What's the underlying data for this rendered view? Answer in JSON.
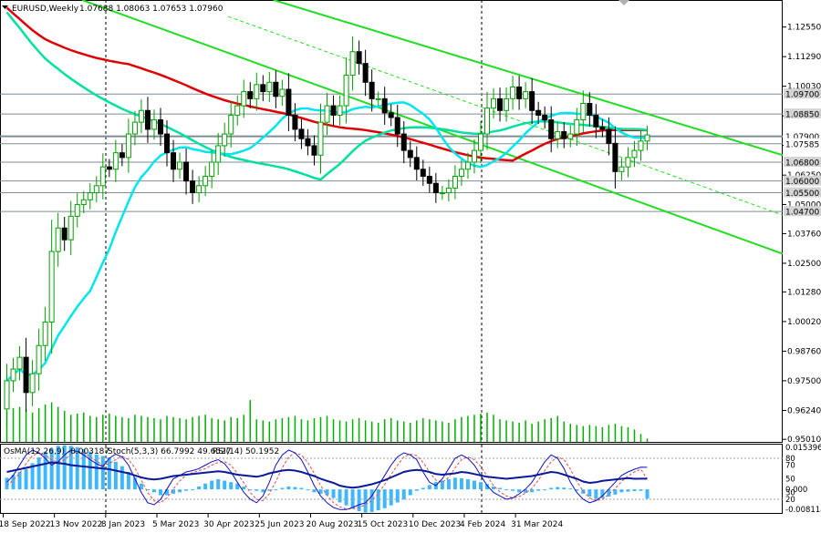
{
  "header": {
    "symbol": "EURUSD,Weekly",
    "ohlc": "1.07688 1.08063 1.07653 1.07960"
  },
  "indicator_header": {
    "osma": "OsMA(12,26,9) -0.003187",
    "stoch": "Stoch(5,3,3) 66.7992 49.6527",
    "rsi": "RSI(14) 50.1952"
  },
  "colors": {
    "bull": "#00a000",
    "bear": "#000000",
    "ma_fast": "#00e5ee",
    "ma_mid": "#00e0a0",
    "ma_slow": "#e00000",
    "channel": "#22dd22",
    "volume": "#00b000",
    "osma_hist": "#3fb7ff",
    "stoch_main": "#1010c0",
    "stoch_signal": "#e05050",
    "rsi": "#0000ff"
  },
  "chart_data": [
    {
      "type": "candlestick",
      "series_name": "EURUSD,Weekly",
      "ylim": [
        0.949,
        1.137
      ],
      "price_ticks": [
        "1.12550",
        "1.11290",
        "1.10030",
        "1.08770",
        "1.07510",
        "1.06250",
        "1.05000",
        "1.03760",
        "1.02500",
        "1.01280",
        "1.00020",
        "0.98760",
        "0.97500",
        "0.96240",
        "0.95010"
      ],
      "highlighted_levels": [
        {
          "label": "1.09700",
          "value": 1.097,
          "bg": "#d4d4d4",
          "fg": "#000000"
        },
        {
          "label": "1.08850",
          "value": 1.0885,
          "bg": "#d4d4d4",
          "fg": "#000000"
        },
        {
          "label": "1.07900",
          "value": 1.079,
          "bg": "#ffffff",
          "fg": "#000000"
        },
        {
          "label": "1.07585",
          "value": 1.07585,
          "bg": "#ffffff",
          "fg": "#000000"
        },
        {
          "label": "1.06800",
          "value": 1.068,
          "bg": "#d4d4d4",
          "fg": "#000000"
        },
        {
          "label": "1.06000",
          "value": 1.06,
          "bg": "#d4d4d4",
          "fg": "#000000"
        },
        {
          "label": "1.05500",
          "value": 1.055,
          "bg": "#d4d4d4",
          "fg": "#000000"
        },
        {
          "label": "1.04700",
          "value": 1.047,
          "bg": "#d4d4d4",
          "fg": "#000000"
        }
      ],
      "x_labels": [
        "18 Sep 2022",
        "13 Nov 2022",
        "8 Jan 2023",
        "5 Mar 2023",
        "30 Apr 2023",
        "25 Jun 2023",
        "20 Aug 2023",
        "15 Oct 2023",
        "10 Dec 2023",
        "4 Feb 2024",
        "31 Mar 2024"
      ],
      "weeks_per_label": 8,
      "close": [
        0.975,
        0.98,
        0.985,
        0.97,
        0.978,
        0.99,
        1.0,
        1.03,
        1.04,
        1.035,
        1.045,
        1.05,
        1.052,
        1.055,
        1.058,
        1.066,
        1.065,
        1.072,
        1.07,
        1.08,
        1.085,
        1.09,
        1.082,
        1.086,
        1.08,
        1.072,
        1.065,
        1.068,
        1.06,
        1.055,
        1.058,
        1.062,
        1.068,
        1.075,
        1.08,
        1.088,
        1.092,
        1.098,
        1.095,
        1.101,
        1.098,
        1.102,
        1.096,
        1.099,
        1.088,
        1.082,
        1.078,
        1.075,
        1.071,
        1.085,
        1.092,
        1.088,
        1.092,
        1.105,
        1.115,
        1.11,
        1.102,
        1.095,
        1.095,
        1.089,
        1.087,
        1.08,
        1.073,
        1.07,
        1.065,
        1.062,
        1.059,
        1.055,
        1.055,
        1.057,
        1.062,
        1.065,
        1.068,
        1.073,
        1.08,
        1.091,
        1.095,
        1.09,
        1.095,
        1.1,
        1.095,
        1.098,
        1.09,
        1.088,
        1.086,
        1.078,
        1.081,
        1.078,
        1.08,
        1.086,
        1.093,
        1.088,
        1.083,
        1.082,
        1.076,
        1.064,
        1.066,
        1.07,
        1.073,
        1.077,
        1.0796
      ],
      "volume_levels": [
        0.55,
        0.6,
        0.62,
        0.58,
        0.52,
        0.6,
        0.66,
        0.7,
        0.62,
        0.55,
        0.48,
        0.5,
        0.52,
        0.46,
        0.44,
        0.48,
        0.5,
        0.46,
        0.44,
        0.42,
        0.48,
        0.46,
        0.44,
        0.42,
        0.4,
        0.46,
        0.44,
        0.42,
        0.4,
        0.44,
        0.46,
        0.48,
        0.42,
        0.4,
        0.38,
        0.44,
        0.42,
        0.48,
        0.74,
        0.4,
        0.38,
        0.36,
        0.4,
        0.42,
        0.44,
        0.46,
        0.4,
        0.38,
        0.42,
        0.44,
        0.46,
        0.4,
        0.38,
        0.36,
        0.4,
        0.42,
        0.38,
        0.36,
        0.34,
        0.4,
        0.42,
        0.38,
        0.36,
        0.34,
        0.38,
        0.42,
        0.4,
        0.38,
        0.36,
        0.34,
        0.4,
        0.44,
        0.46,
        0.48,
        0.5,
        0.52,
        0.48,
        0.4,
        0.38,
        0.36,
        0.34,
        0.38,
        0.32,
        0.36,
        0.4,
        0.42,
        0.46,
        0.36,
        0.32,
        0.3,
        0.28,
        0.3,
        0.28,
        0.26,
        0.3,
        0.32,
        0.28,
        0.26,
        0.22,
        0.14,
        0.06
      ]
    },
    {
      "type": "oscillator",
      "series_names": [
        "OsMA(12,26,9)",
        "Stoch(5,3,3)",
        "RSI(14)"
      ],
      "right_labels": [
        "0.0153960",
        "80",
        "70",
        "50",
        "30",
        "20",
        "0.000",
        "-0.008114"
      ],
      "osma_values": [
        0.004,
        0.005,
        0.006,
        0.007,
        0.009,
        0.011,
        0.013,
        0.014,
        0.015,
        0.0152,
        0.015,
        0.0145,
        0.0138,
        0.013,
        0.012,
        0.0115,
        0.011,
        0.0095,
        0.008,
        0.006,
        0.004,
        0.002,
        0.0,
        -0.001,
        -0.002,
        -0.002,
        -0.0015,
        -0.001,
        -0.0005,
        0.0,
        0.001,
        0.002,
        0.003,
        0.0035,
        0.003,
        0.0025,
        0.002,
        0.001,
        0.0,
        -0.0005,
        -0.001,
        -0.0005,
        0.0,
        0.0005,
        0.001,
        0.0008,
        0.0005,
        0.0,
        -0.001,
        -0.0015,
        -0.002,
        -0.003,
        -0.0045,
        -0.0055,
        -0.0065,
        -0.0075,
        -0.008,
        -0.0078,
        -0.0072,
        -0.0065,
        -0.0055,
        -0.0045,
        -0.0035,
        -0.002,
        -0.0005,
        0.0005,
        0.0015,
        0.0025,
        0.003,
        0.0035,
        0.004,
        0.0038,
        0.0035,
        0.003,
        0.0025,
        0.0018,
        0.001,
        0.0005,
        0.0,
        -0.0005,
        -0.001,
        -0.0012,
        -0.001,
        -0.0005,
        0.0,
        0.0005,
        0.0008,
        0.0006,
        0.0003,
        -0.0005,
        -0.0015,
        -0.0025,
        -0.0032,
        -0.003,
        -0.0025,
        -0.0018,
        -0.001,
        -0.0008,
        -0.0006,
        -0.0005,
        -0.0032
      ],
      "stoch_main": [
        45,
        55,
        70,
        85,
        92,
        88,
        80,
        70,
        75,
        85,
        92,
        90,
        85,
        78,
        72,
        68,
        80,
        86,
        82,
        70,
        50,
        30,
        15,
        12,
        20,
        35,
        50,
        55,
        60,
        62,
        65,
        70,
        75,
        78,
        72,
        60,
        45,
        30,
        20,
        15,
        25,
        45,
        70,
        85,
        92,
        88,
        78,
        60,
        40,
        25,
        15,
        8,
        5,
        5,
        8,
        12,
        15,
        25,
        40,
        55,
        70,
        82,
        88,
        85,
        78,
        60,
        45,
        40,
        50,
        65,
        80,
        85,
        80,
        70,
        55,
        40,
        30,
        25,
        20,
        22,
        28,
        35,
        45,
        60,
        75,
        85,
        80,
        65,
        45,
        30,
        20,
        15,
        18,
        25,
        35,
        45,
        55,
        60,
        64,
        67,
        66.8
      ],
      "stoch_signal": [
        40,
        48,
        58,
        72,
        84,
        88,
        85,
        78,
        74,
        78,
        86,
        90,
        88,
        82,
        76,
        70,
        72,
        78,
        83,
        78,
        66,
        48,
        30,
        18,
        15,
        22,
        35,
        47,
        55,
        59,
        62,
        65,
        70,
        74,
        75,
        70,
        58,
        44,
        30,
        20,
        18,
        28,
        46,
        66,
        82,
        88,
        85,
        74,
        58,
        40,
        26,
        15,
        9,
        6,
        6,
        8,
        12,
        18,
        28,
        42,
        56,
        70,
        82,
        86,
        84,
        74,
        60,
        48,
        45,
        52,
        66,
        78,
        82,
        78,
        68,
        54,
        40,
        31,
        25,
        22,
        24,
        29,
        36,
        48,
        62,
        75,
        82,
        78,
        64,
        46,
        32,
        22,
        18,
        20,
        27,
        36,
        46,
        54,
        60,
        64,
        49.7
      ],
      "rsi": [
        60,
        62,
        64,
        66,
        68,
        70,
        72,
        74,
        73,
        72,
        70,
        69,
        68,
        67,
        66,
        65,
        64,
        62,
        60,
        58,
        55,
        52,
        50,
        49,
        50,
        52,
        54,
        55,
        56,
        57,
        58,
        59,
        60,
        61,
        60,
        58,
        56,
        55,
        54,
        53,
        55,
        58,
        60,
        62,
        63,
        62,
        60,
        57,
        54,
        50,
        47,
        44,
        40,
        38,
        37,
        38,
        40,
        42,
        45,
        48,
        52,
        56,
        60,
        62,
        63,
        62,
        60,
        57,
        56,
        57,
        58,
        60,
        59,
        57,
        55,
        53,
        52,
        51,
        50,
        51,
        52,
        53,
        54,
        56,
        58,
        60,
        59,
        56,
        53,
        50,
        46,
        44,
        45,
        47,
        48,
        49,
        50,
        51,
        50,
        50.2,
        50.2
      ],
      "osma_range": [
        -0.008114,
        0.015396
      ],
      "stoch_range": [
        0,
        100
      ]
    }
  ]
}
